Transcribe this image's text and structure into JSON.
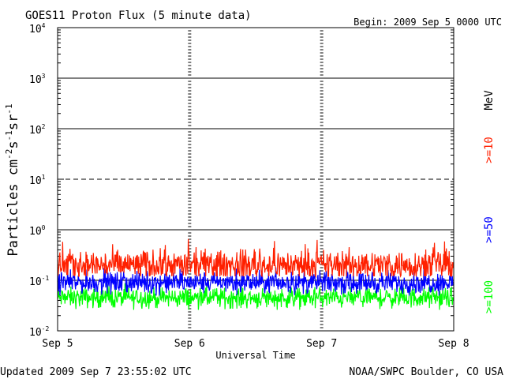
{
  "chart_data": {
    "type": "line",
    "title": "GOES11 Proton Flux (5 minute data)",
    "begin": "Begin: 2009 Sep 5 0000 UTC",
    "ylabel_main": "Particles cm",
    "ylabel_sup1": "-2",
    "ylabel_s": "s",
    "ylabel_sup2": "-1",
    "ylabel_sr": "sr",
    "ylabel_sup3": "-1",
    "xlabel": "Universal Time",
    "updated": "Updated 2009 Sep  7 23:55:02 UTC",
    "credit": "NOAA/SWPC Boulder, CO USA",
    "unit": "MeV",
    "y_scale": "log",
    "ylim": [
      0.01,
      10000
    ],
    "ytick_labels": [
      {
        "base": "10",
        "exp": "-2",
        "value": 0.01
      },
      {
        "base": "10",
        "exp": "-1",
        "value": 0.1
      },
      {
        "base": "10",
        "exp": "0",
        "value": 1
      },
      {
        "base": "10",
        "exp": "1",
        "value": 10
      },
      {
        "base": "10",
        "exp": "2",
        "value": 100
      },
      {
        "base": "10",
        "exp": "3",
        "value": 1000
      },
      {
        "base": "10",
        "exp": "4",
        "value": 10000
      }
    ],
    "xticks": [
      "Sep 5",
      "Sep 6",
      "Sep 7",
      "Sep 8"
    ],
    "xlim_days": [
      0,
      3
    ],
    "reference_lines": [
      {
        "value": 1000,
        "style": "solid"
      },
      {
        "value": 100,
        "style": "solid"
      },
      {
        "value": 10,
        "style": "dashed"
      },
      {
        "value": 1,
        "style": "solid"
      },
      {
        "value": 0.1,
        "style": "solid"
      }
    ],
    "series": [
      {
        "name": ">=10",
        "color": "#ff2000",
        "typical": 0.2,
        "min": 0.12,
        "max": 0.75
      },
      {
        "name": ">=50",
        "color": "#0000ff",
        "typical": 0.09,
        "min": 0.05,
        "max": 0.19
      },
      {
        "name": ">=100",
        "color": "#00ff00",
        "typical": 0.045,
        "min": 0.026,
        "max": 0.09
      }
    ]
  }
}
